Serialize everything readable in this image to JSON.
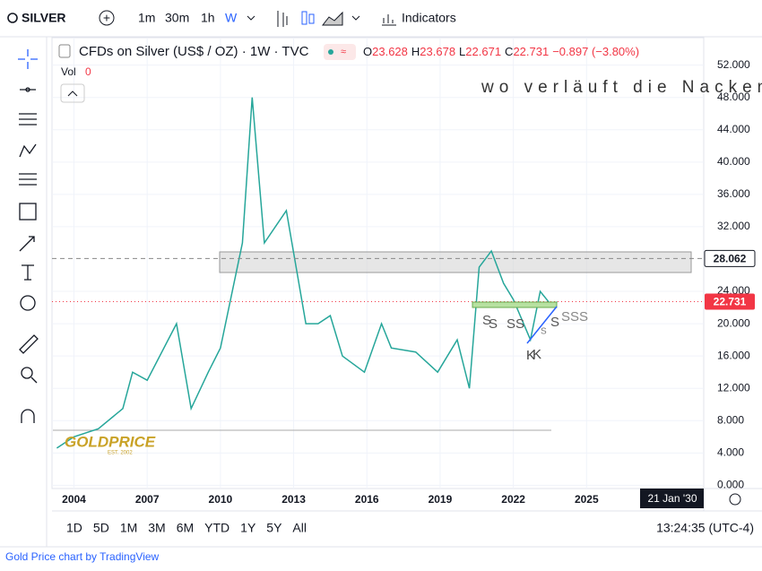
{
  "toolbar": {
    "symbol": "SILVER",
    "intervals": [
      "1m",
      "30m",
      "1h",
      "W"
    ],
    "indicators": "Indicators"
  },
  "legend": {
    "name": "CFDs on Silver (US$ / OZ) · 1W · TVC",
    "open_label": "O",
    "high_label": "H",
    "low_label": "L",
    "close_label": "C",
    "change": "−0.897 (−3.80%)",
    "vol_label": "Vol",
    "vol": 0
  },
  "ohlc": {
    "open": 23.628,
    "high": 23.678,
    "low": 22.671,
    "close": 22.731
  },
  "chart_data": {
    "type": "line",
    "title": "wo verläuft die Nackenlinie?",
    "color": "#26a69a",
    "x": [
      2003.3,
      2004,
      2005,
      2006,
      2006.4,
      2007,
      2008.2,
      2008.8,
      2009.5,
      2010,
      2010.9,
      2011.3,
      2011.8,
      2012.7,
      2013.5,
      2014,
      2014.5,
      2015,
      2015.9,
      2016.6,
      2017,
      2018,
      2018.9,
      2019.7,
      2020.2,
      2020.6,
      2021.1,
      2021.6,
      2022,
      2022.7,
      2023.1,
      2023.5,
      2023.8
    ],
    "values": [
      4.6,
      6.0,
      7.0,
      9.5,
      14,
      13,
      20,
      9.5,
      14,
      17,
      30,
      48,
      30,
      34,
      20,
      20,
      21,
      16,
      14,
      20,
      17,
      16.5,
      14,
      18,
      12,
      27,
      29,
      25,
      23,
      18,
      24,
      22.5,
      22.7
    ],
    "xlim": [
      2003.1,
      2029.8
    ],
    "xticks": [
      2004,
      2007,
      2010,
      2013,
      2016,
      2019,
      2022,
      2025
    ],
    "ylim": [
      -0.4,
      55.4
    ],
    "yticks": [
      {
        "value": 0,
        "label": "0.000"
      },
      {
        "value": 4,
        "label": "4.000"
      },
      {
        "value": 8,
        "label": "8.000"
      },
      {
        "value": 12,
        "label": "12.000"
      },
      {
        "value": 16,
        "label": "16.000"
      },
      {
        "value": 20,
        "label": "20.000"
      },
      {
        "value": 24,
        "label": "24.000"
      },
      {
        "value": 32,
        "label": "32.000"
      },
      {
        "value": 36,
        "label": "36.000"
      },
      {
        "value": 40,
        "label": "40.000"
      },
      {
        "value": 44,
        "label": "44.000"
      },
      {
        "value": 48,
        "label": "48.000"
      },
      {
        "value": 52,
        "label": "52.000"
      }
    ],
    "price_line": 28.062,
    "grid": true,
    "markers": [
      "S",
      "S",
      "SS",
      "S",
      "S",
      "SSS",
      "K",
      "K"
    ],
    "crosshair_date": "21 Jan '30"
  },
  "logo": {
    "name": "GOLDPRICE",
    "est": "EST. 2002"
  },
  "ranges": [
    "1D",
    "5D",
    "1M",
    "3M",
    "6M",
    "YTD",
    "1Y",
    "5Y",
    "All"
  ],
  "clock": "13:24:35 (UTC-4)",
  "footer": "Gold Price chart by TradingView"
}
